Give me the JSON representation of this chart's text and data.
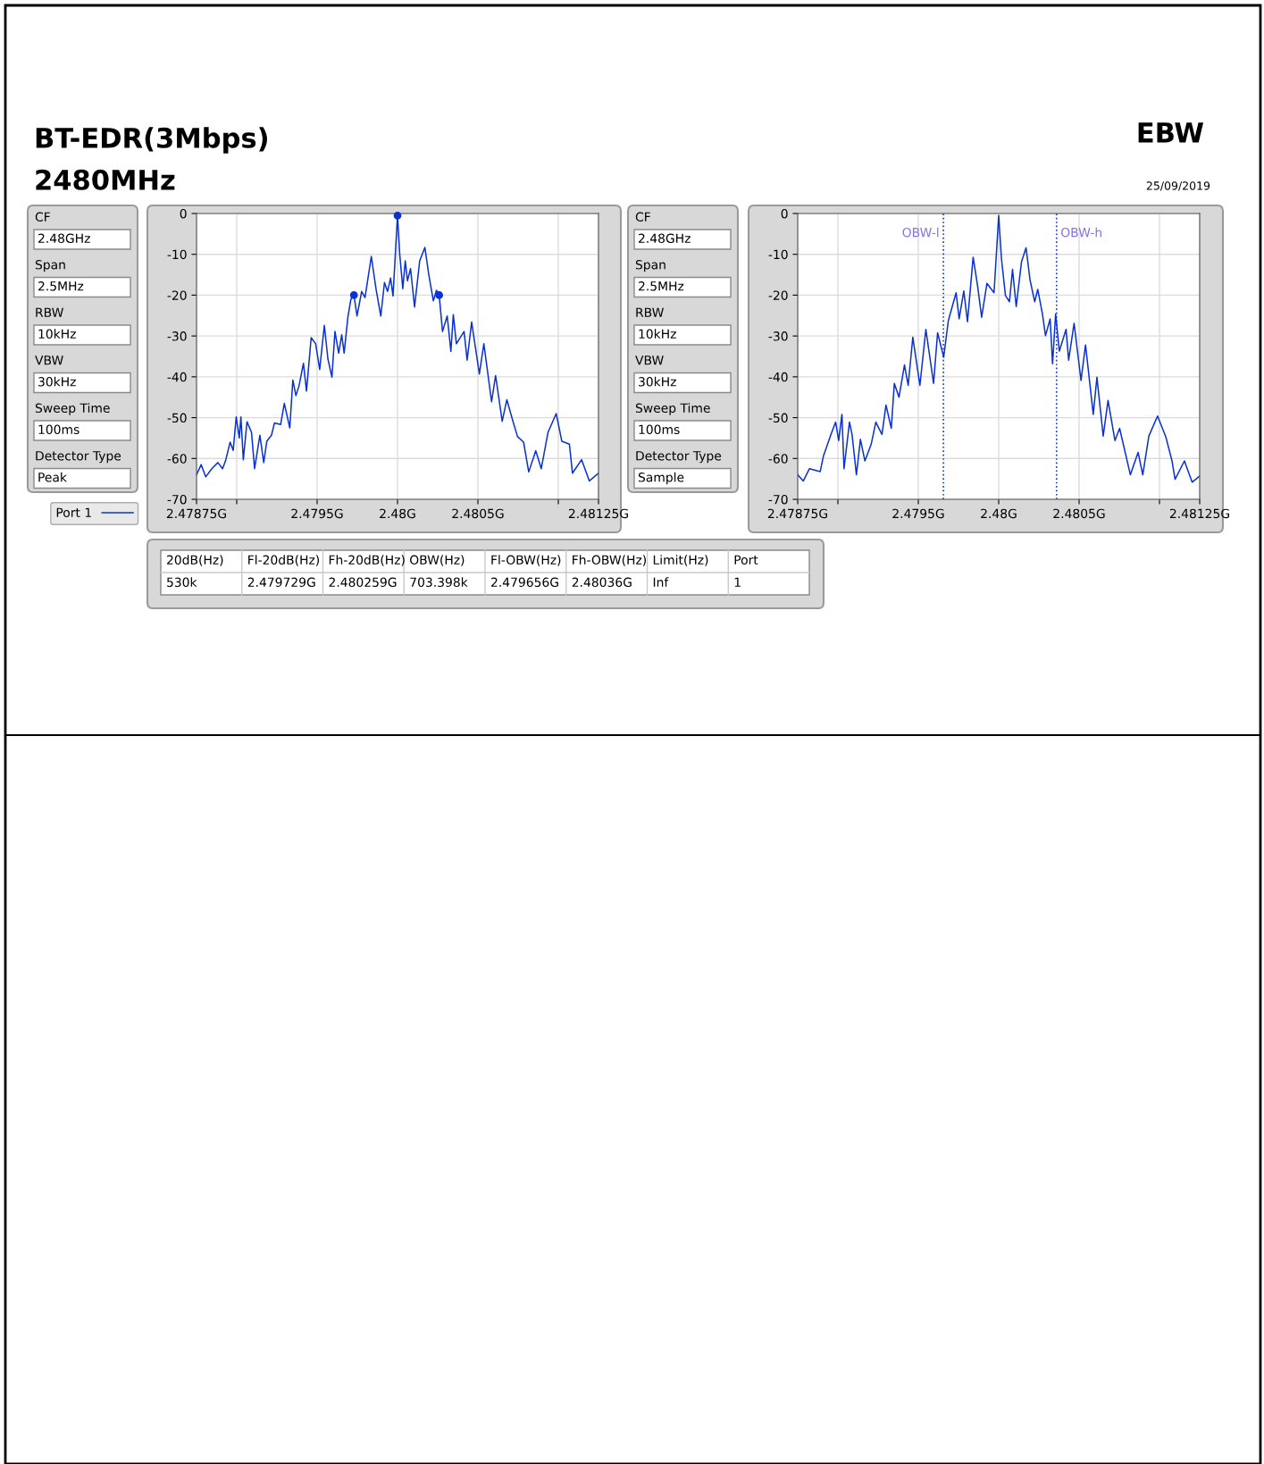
{
  "chart_data": [
    {
      "type": "other",
      "title": "BT-EDR(3Mbps)",
      "subtitle": "2480MHz",
      "annotations": [
        "EBW",
        "25/09/2019"
      ]
    },
    {
      "type": "other",
      "annotations": [
        "CF",
        "2.48GHz",
        "Span",
        "2.5MHz",
        "RBW",
        "10kHz",
        "VBW",
        "30kHz",
        "Sweep Time",
        "100ms",
        "Detector Type",
        "Peak"
      ]
    },
    {
      "type": "line",
      "xlim": [
        2.47875,
        2.48125
      ],
      "ylim": [
        -70,
        0
      ],
      "xticks": [
        {
          "value": 2.47875,
          "label": "2.47875G"
        },
        {
          "value": 2.479,
          "label": null
        },
        {
          "value": 2.4795,
          "label": "2.4795G"
        },
        {
          "value": 2.48,
          "label": "2.48G"
        },
        {
          "value": 2.4805,
          "label": "2.4805G"
        },
        {
          "value": 2.481,
          "label": null
        },
        {
          "value": 2.48125,
          "label": "2.48125G"
        }
      ],
      "yticks": [
        0,
        -10,
        -20,
        -30,
        -40,
        -50,
        -60,
        -70
      ],
      "grid": true,
      "legend": "left",
      "series": [
        {
          "name": "Port 1",
          "color": "#0a32d2",
          "x": [
            2.47875,
            2.478779,
            2.478807,
            2.478845,
            2.478883,
            2.478912,
            2.478931,
            2.478959,
            2.478978,
            2.478997,
            2.479016,
            2.479026,
            2.479041,
            2.479064,
            2.479092,
            2.479111,
            2.479144,
            2.479168,
            2.479187,
            2.479216,
            2.479235,
            2.479273,
            2.479296,
            2.47933,
            2.479349,
            2.479368,
            2.479387,
            2.479415,
            2.479434,
            2.479463,
            2.479491,
            2.479516,
            2.479545,
            2.479567,
            2.479592,
            2.479611,
            2.479634,
            2.479653,
            2.479668,
            2.479691,
            2.47971,
            2.479729,
            2.479748,
            2.479777,
            2.479798,
            2.479837,
            2.479866,
            2.479896,
            2.479919,
            2.479938,
            2.479957,
            2.479972,
            2.48,
            2.480014,
            2.480033,
            2.480048,
            2.480062,
            2.480081,
            2.480106,
            2.480138,
            2.48017,
            2.480195,
            2.480223,
            2.480242,
            2.480259,
            2.48028,
            2.480309,
            2.480332,
            2.480347,
            2.480366,
            2.480414,
            2.480433,
            2.480461,
            2.480509,
            2.480537,
            2.480585,
            2.48061,
            2.480651,
            2.48068,
            2.480718,
            2.480746,
            2.480784,
            2.480816,
            2.48086,
            2.480894,
            2.480936,
            2.480987,
            2.481022,
            2.481069,
            2.481088,
            2.481145,
            2.481193,
            2.48125
          ],
          "values": [
            -64,
            -61.5,
            -64.5,
            -62.5,
            -61,
            -62.5,
            -60.5,
            -56,
            -58,
            -49.8,
            -55,
            -49.8,
            -60.3,
            -51,
            -53.6,
            -62.5,
            -54.3,
            -61,
            -55.8,
            -54.3,
            -51.3,
            -51.7,
            -46.5,
            -52.5,
            -40.8,
            -44.6,
            -42.3,
            -36.7,
            -43.5,
            -30.4,
            -31.9,
            -38.2,
            -27.4,
            -35.6,
            -40.1,
            -28.9,
            -34.2,
            -29.7,
            -34.2,
            -25.5,
            -21,
            -20,
            -25.1,
            -19.1,
            -20.6,
            -10.5,
            -18.4,
            -25.1,
            -16.9,
            -19.1,
            -15.8,
            -20.2,
            -0.5,
            -10.1,
            -18.4,
            -11.6,
            -16.5,
            -13.5,
            -22.9,
            -11.6,
            -8.3,
            -15.1,
            -21.4,
            -18.8,
            -20,
            -28.9,
            -25.1,
            -33.8,
            -24.8,
            -31.9,
            -28.9,
            -35.9,
            -26.6,
            -39.3,
            -31.9,
            -46.1,
            -39.7,
            -50.9,
            -45.6,
            -50.9,
            -54.6,
            -56,
            -63.3,
            -58.1,
            -62.5,
            -53.6,
            -49,
            -55.8,
            -56.5,
            -63.6,
            -60.3,
            -65.5,
            -63.6
          ]
        },
        {
          "type": "scatter",
          "marker": "circle",
          "color": "#0a32d2",
          "x": [
            2.479729,
            2.48,
            2.480259
          ],
          "values": [
            -20,
            -0.5,
            -20
          ]
        }
      ]
    },
    {
      "type": "other",
      "annotations": [
        "CF",
        "2.48GHz",
        "Span",
        "2.5MHz",
        "RBW",
        "10kHz",
        "VBW",
        "30kHz",
        "Sweep Time",
        "100ms",
        "Detector Type",
        "Sample"
      ]
    },
    {
      "type": "line",
      "xlim": [
        2.47875,
        2.48125
      ],
      "ylim": [
        -70,
        0
      ],
      "xticks": [
        {
          "value": 2.47875,
          "label": "2.47875G"
        },
        {
          "value": 2.479,
          "label": null
        },
        {
          "value": 2.4795,
          "label": "2.4795G"
        },
        {
          "value": 2.48,
          "label": "2.48G"
        },
        {
          "value": 2.4805,
          "label": "2.4805G"
        },
        {
          "value": 2.481,
          "label": null
        },
        {
          "value": 2.48125,
          "label": "2.48125G"
        }
      ],
      "yticks": [
        0,
        -10,
        -20,
        -30,
        -40,
        -50,
        -60,
        -70
      ],
      "grid": true,
      "ref_lines": [
        {
          "axis": "x",
          "value": 2.479656,
          "label": "OBW-l",
          "color": "#1a3ccc",
          "line_style": "dotted"
        },
        {
          "axis": "x",
          "value": 2.48036,
          "label": "OBW-h",
          "color": "#1a3ccc",
          "line_style": "dotted"
        }
      ],
      "series": [
        {
          "color": "#0a32d2",
          "x": [
            2.47875,
            2.478785,
            2.478823,
            2.47889,
            2.47891,
            2.478957,
            2.478986,
            2.479005,
            2.479025,
            2.479038,
            2.479072,
            2.479088,
            2.479115,
            2.47914,
            2.479168,
            2.479207,
            2.479236,
            2.479274,
            2.479299,
            2.479332,
            2.479351,
            2.47938,
            2.479414,
            2.479437,
            2.479466,
            2.47951,
            2.479547,
            2.479595,
            2.47962,
            2.479658,
            2.479687,
            2.479735,
            2.479754,
            2.479783,
            2.479806,
            2.479841,
            2.479869,
            2.479894,
            2.479927,
            2.479971,
            2.48,
            2.480017,
            2.480042,
            2.480067,
            2.480086,
            2.480109,
            2.480142,
            2.48017,
            2.480195,
            2.480224,
            2.480243,
            2.480272,
            2.480291,
            2.48032,
            2.480335,
            2.480354,
            2.480377,
            2.480419,
            2.480435,
            2.480469,
            2.480512,
            2.48054,
            2.480588,
            2.480611,
            2.48065,
            2.48068,
            2.480723,
            2.480752,
            2.480819,
            2.480867,
            2.480896,
            2.480934,
            2.480988,
            2.48104,
            2.481078,
            2.481097,
            2.481155,
            2.481203,
            2.48125
          ],
          "values": [
            -64,
            -65.5,
            -62.5,
            -63.2,
            -59.4,
            -54.1,
            -51.1,
            -55.6,
            -49.2,
            -62.5,
            -51.1,
            -54.1,
            -64,
            -55.3,
            -60.6,
            -56.5,
            -51.1,
            -54.1,
            -46.9,
            -52.6,
            -41.6,
            -45,
            -37.1,
            -42.1,
            -30.3,
            -42.1,
            -28.4,
            -41.6,
            -29.2,
            -35.2,
            -26.2,
            -19.4,
            -25.8,
            -19,
            -26.5,
            -10.7,
            -17.8,
            -25.4,
            -17.1,
            -19.4,
            -0.5,
            -11,
            -20.1,
            -21.6,
            -13.7,
            -22.8,
            -11.8,
            -8.4,
            -16.3,
            -21.6,
            -18.6,
            -24.6,
            -29.9,
            -25.8,
            -36.8,
            -24.6,
            -33.7,
            -28.4,
            -35.9,
            -26.9,
            -40.9,
            -32.2,
            -49.2,
            -40.1,
            -54.5,
            -45.8,
            -55.6,
            -52.6,
            -64,
            -58.5,
            -64,
            -54.5,
            -49.6,
            -54.8,
            -60.6,
            -65.1,
            -60.6,
            -65.8,
            -64.3
          ]
        }
      ]
    },
    {
      "type": "other",
      "annotations": [
        "20dB(Hz)",
        "Fl-20dB(Hz)",
        "Fh-20dB(Hz)",
        "OBW(Hz)",
        "Fl-OBW(Hz)",
        "Fh-OBW(Hz)",
        "Limit(Hz)",
        "Port",
        "530k",
        "2.479729G",
        "2.480259G",
        "703.398k",
        "2.479656G",
        "2.48036G",
        "Inf",
        "1"
      ]
    }
  ]
}
